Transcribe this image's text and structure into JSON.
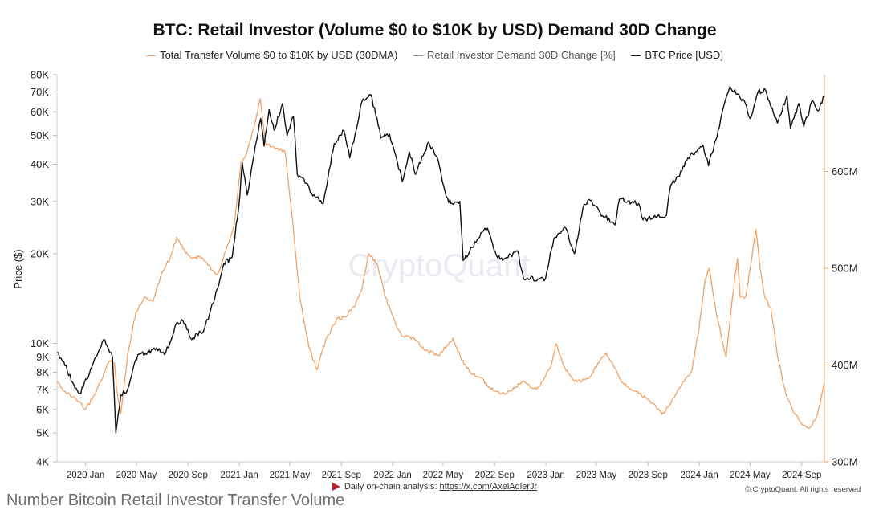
{
  "chart_data": {
    "type": "line",
    "title": "BTC: Retail Investor (Volume $0 to $10K by USD) Demand 30D Change",
    "legend": [
      {
        "label": "Total Transfer Volume $0 to $10K by USD (30DMA)",
        "color": "#f0a266",
        "strike": false
      },
      {
        "label": "Retail Investor Demand 30D Change [%]",
        "color": "#8a8a9a",
        "strike": true
      },
      {
        "label": "BTC Price [USD]",
        "color": "#111111",
        "strike": false
      }
    ],
    "ylabel": "Price ($)",
    "y_left": {
      "scale": "log",
      "range": [
        4000,
        80000
      ],
      "ticks": [
        {
          "value": 4000,
          "label": "4K"
        },
        {
          "value": 5000,
          "label": "5K"
        },
        {
          "value": 6000,
          "label": "6K"
        },
        {
          "value": 7000,
          "label": "7K"
        },
        {
          "value": 8000,
          "label": "8K"
        },
        {
          "value": 9000,
          "label": "9K"
        },
        {
          "value": 10000,
          "label": "10K"
        },
        {
          "value": 20000,
          "label": "20K"
        },
        {
          "value": 30000,
          "label": "30K"
        },
        {
          "value": 40000,
          "label": "40K"
        },
        {
          "value": 50000,
          "label": "50K"
        },
        {
          "value": 60000,
          "label": "60K"
        },
        {
          "value": 70000,
          "label": "70K"
        },
        {
          "value": 80000,
          "label": "80K"
        }
      ]
    },
    "y_right": {
      "scale": "linear",
      "range": [
        300000000,
        700000000
      ],
      "ticks": [
        {
          "value": 300000000,
          "label": "300M"
        },
        {
          "value": 400000000,
          "label": "400M"
        },
        {
          "value": 500000000,
          "label": "500M"
        },
        {
          "value": 600000000,
          "label": "600M"
        }
      ]
    },
    "x_ticks": [
      {
        "date": "2020-01",
        "label": "2020 Jan"
      },
      {
        "date": "2020-05",
        "label": "2020 May"
      },
      {
        "date": "2020-09",
        "label": "2020 Sep"
      },
      {
        "date": "2021-01",
        "label": "2021 Jan"
      },
      {
        "date": "2021-05",
        "label": "2021 May"
      },
      {
        "date": "2021-09",
        "label": "2021 Sep"
      },
      {
        "date": "2022-01",
        "label": "2022 Jan"
      },
      {
        "date": "2022-05",
        "label": "2022 May"
      },
      {
        "date": "2022-09",
        "label": "2022 Sep"
      },
      {
        "date": "2023-01",
        "label": "2023 Jan"
      },
      {
        "date": "2023-05",
        "label": "2023 May"
      },
      {
        "date": "2023-09",
        "label": "2023 Sep"
      },
      {
        "date": "2024-01",
        "label": "2024 Jan"
      },
      {
        "date": "2024-05",
        "label": "2024 May"
      },
      {
        "date": "2024-09",
        "label": "2024 Sep"
      }
    ],
    "x_range": [
      "2019-10-25",
      "2024-10-25"
    ],
    "grid": false,
    "series": [
      {
        "name": "BTC Price [USD]",
        "axis": "left",
        "color": "#111111",
        "points": [
          [
            "2019-10-25",
            9300
          ],
          [
            "2019-11-10",
            8700
          ],
          [
            "2019-12-01",
            7400
          ],
          [
            "2019-12-18",
            6800
          ],
          [
            "2020-01-10",
            7900
          ],
          [
            "2020-02-13",
            10300
          ],
          [
            "2020-03-05",
            9000
          ],
          [
            "2020-03-13",
            5000
          ],
          [
            "2020-03-25",
            6700
          ],
          [
            "2020-04-10",
            7000
          ],
          [
            "2020-04-29",
            8800
          ],
          [
            "2020-05-10",
            9200
          ],
          [
            "2020-06-15",
            9500
          ],
          [
            "2020-07-10",
            9300
          ],
          [
            "2020-08-01",
            11400
          ],
          [
            "2020-08-20",
            11900
          ],
          [
            "2020-09-10",
            10300
          ],
          [
            "2020-10-10",
            11200
          ],
          [
            "2020-10-25",
            13000
          ],
          [
            "2020-11-10",
            15300
          ],
          [
            "2020-11-25",
            18500
          ],
          [
            "2020-12-15",
            19500
          ],
          [
            "2020-12-31",
            29000
          ],
          [
            "2021-01-08",
            40500
          ],
          [
            "2021-01-20",
            31500
          ],
          [
            "2021-02-08",
            46000
          ],
          [
            "2021-02-21",
            57000
          ],
          [
            "2021-03-01",
            46000
          ],
          [
            "2021-03-13",
            61000
          ],
          [
            "2021-03-25",
            52000
          ],
          [
            "2021-04-14",
            64000
          ],
          [
            "2021-04-25",
            50000
          ],
          [
            "2021-05-10",
            58000
          ],
          [
            "2021-05-19",
            37000
          ],
          [
            "2021-06-01",
            36000
          ],
          [
            "2021-06-22",
            32000
          ],
          [
            "2021-07-20",
            29500
          ],
          [
            "2021-08-15",
            47000
          ],
          [
            "2021-09-07",
            52000
          ],
          [
            "2021-09-21",
            42000
          ],
          [
            "2021-10-10",
            55000
          ],
          [
            "2021-10-20",
            65000
          ],
          [
            "2021-11-10",
            68500
          ],
          [
            "2021-11-25",
            57000
          ],
          [
            "2021-12-04",
            49000
          ],
          [
            "2021-12-25",
            50500
          ],
          [
            "2022-01-10",
            42000
          ],
          [
            "2022-01-24",
            35000
          ],
          [
            "2022-02-10",
            44000
          ],
          [
            "2022-02-24",
            37000
          ],
          [
            "2022-03-28",
            47500
          ],
          [
            "2022-04-20",
            41000
          ],
          [
            "2022-05-09",
            31000
          ],
          [
            "2022-05-20",
            29500
          ],
          [
            "2022-06-10",
            30000
          ],
          [
            "2022-06-18",
            19000
          ],
          [
            "2022-07-10",
            21000
          ],
          [
            "2022-07-30",
            23500
          ],
          [
            "2022-08-15",
            24400
          ],
          [
            "2022-09-05",
            19800
          ],
          [
            "2022-09-20",
            19000
          ],
          [
            "2022-10-25",
            20500
          ],
          [
            "2022-11-09",
            16500
          ],
          [
            "2022-12-31",
            16500
          ],
          [
            "2023-01-20",
            22500
          ],
          [
            "2023-02-16",
            24500
          ],
          [
            "2023-03-10",
            20000
          ],
          [
            "2023-03-30",
            28500
          ],
          [
            "2023-04-14",
            30500
          ],
          [
            "2023-05-10",
            27500
          ],
          [
            "2023-06-15",
            25000
          ],
          [
            "2023-06-25",
            30500
          ],
          [
            "2023-07-15",
            30000
          ],
          [
            "2023-08-10",
            29500
          ],
          [
            "2023-08-20",
            26000
          ],
          [
            "2023-09-20",
            26500
          ],
          [
            "2023-10-15",
            27000
          ],
          [
            "2023-10-25",
            34000
          ],
          [
            "2023-11-15",
            36500
          ],
          [
            "2023-12-05",
            42000
          ],
          [
            "2024-01-10",
            46500
          ],
          [
            "2024-01-23",
            39500
          ],
          [
            "2024-02-15",
            52000
          ],
          [
            "2024-03-05",
            67000
          ],
          [
            "2024-03-14",
            73000
          ],
          [
            "2024-04-01",
            69000
          ],
          [
            "2024-04-20",
            64000
          ],
          [
            "2024-05-01",
            57000
          ],
          [
            "2024-05-20",
            70000
          ],
          [
            "2024-06-07",
            71000
          ],
          [
            "2024-07-05",
            55000
          ],
          [
            "2024-07-28",
            68000
          ],
          [
            "2024-08-05",
            53000
          ],
          [
            "2024-08-25",
            64000
          ],
          [
            "2024-09-06",
            53500
          ],
          [
            "2024-09-27",
            65500
          ],
          [
            "2024-10-10",
            60500
          ],
          [
            "2024-10-25",
            67500
          ]
        ]
      },
      {
        "name": "Total Transfer Volume $0 to $10K by USD (30DMA)",
        "axis": "right",
        "color": "#f0a266",
        "points": [
          [
            "2019-10-25",
            383000000
          ],
          [
            "2019-11-15",
            372000000
          ],
          [
            "2019-12-15",
            362000000
          ],
          [
            "2020-01-01",
            354000000
          ],
          [
            "2020-01-20",
            368000000
          ],
          [
            "2020-02-05",
            382000000
          ],
          [
            "2020-02-25",
            403000000
          ],
          [
            "2020-03-10",
            402000000
          ],
          [
            "2020-03-15",
            375000000
          ],
          [
            "2020-03-25",
            350000000
          ],
          [
            "2020-04-10",
            410000000
          ],
          [
            "2020-04-30",
            455000000
          ],
          [
            "2020-05-20",
            470000000
          ],
          [
            "2020-06-10",
            466000000
          ],
          [
            "2020-06-30",
            495000000
          ],
          [
            "2020-07-20",
            510000000
          ],
          [
            "2020-08-05",
            532000000
          ],
          [
            "2020-08-20",
            520000000
          ],
          [
            "2020-09-10",
            510000000
          ],
          [
            "2020-09-30",
            512000000
          ],
          [
            "2020-10-20",
            503000000
          ],
          [
            "2020-11-10",
            493000000
          ],
          [
            "2020-12-01",
            520000000
          ],
          [
            "2020-12-20",
            545000000
          ],
          [
            "2021-01-05",
            610000000
          ],
          [
            "2021-01-20",
            620000000
          ],
          [
            "2021-02-10",
            655000000
          ],
          [
            "2021-02-20",
            675000000
          ],
          [
            "2021-03-05",
            628000000
          ],
          [
            "2021-03-25",
            625000000
          ],
          [
            "2021-04-20",
            620000000
          ],
          [
            "2021-05-10",
            540000000
          ],
          [
            "2021-05-25",
            470000000
          ],
          [
            "2021-06-15",
            420000000
          ],
          [
            "2021-07-05",
            395000000
          ],
          [
            "2021-07-25",
            425000000
          ],
          [
            "2021-08-20",
            447000000
          ],
          [
            "2021-09-10",
            450000000
          ],
          [
            "2021-10-01",
            460000000
          ],
          [
            "2021-10-20",
            478000000
          ],
          [
            "2021-11-05",
            515000000
          ],
          [
            "2021-11-25",
            505000000
          ],
          [
            "2021-12-15",
            470000000
          ],
          [
            "2022-01-10",
            440000000
          ],
          [
            "2022-01-25",
            430000000
          ],
          [
            "2022-02-20",
            428000000
          ],
          [
            "2022-03-20",
            415000000
          ],
          [
            "2022-04-20",
            410000000
          ],
          [
            "2022-05-10",
            420000000
          ],
          [
            "2022-05-25",
            428000000
          ],
          [
            "2022-06-15",
            405000000
          ],
          [
            "2022-07-05",
            392000000
          ],
          [
            "2022-07-30",
            387000000
          ],
          [
            "2022-08-20",
            377000000
          ],
          [
            "2022-09-15",
            370000000
          ],
          [
            "2022-10-10",
            373000000
          ],
          [
            "2022-11-05",
            383000000
          ],
          [
            "2022-11-20",
            380000000
          ],
          [
            "2022-12-10",
            375000000
          ],
          [
            "2022-12-25",
            383000000
          ],
          [
            "2023-01-15",
            402000000
          ],
          [
            "2023-01-25",
            422000000
          ],
          [
            "2023-02-15",
            397000000
          ],
          [
            "2023-03-10",
            383000000
          ],
          [
            "2023-04-05",
            385000000
          ],
          [
            "2023-04-20",
            390000000
          ],
          [
            "2023-05-10",
            405000000
          ],
          [
            "2023-05-25",
            412000000
          ],
          [
            "2023-06-10",
            400000000
          ],
          [
            "2023-06-30",
            382000000
          ],
          [
            "2023-08-01",
            373000000
          ],
          [
            "2023-08-30",
            365000000
          ],
          [
            "2023-09-20",
            357000000
          ],
          [
            "2023-10-05",
            349000000
          ],
          [
            "2023-10-25",
            360000000
          ],
          [
            "2023-11-20",
            380000000
          ],
          [
            "2023-12-15",
            395000000
          ],
          [
            "2024-01-01",
            440000000
          ],
          [
            "2024-01-15",
            488000000
          ],
          [
            "2024-01-25",
            500000000
          ],
          [
            "2024-02-10",
            455000000
          ],
          [
            "2024-02-25",
            425000000
          ],
          [
            "2024-03-05",
            408000000
          ],
          [
            "2024-03-20",
            470000000
          ],
          [
            "2024-04-01",
            510000000
          ],
          [
            "2024-04-08",
            470000000
          ],
          [
            "2024-04-20",
            470000000
          ],
          [
            "2024-05-05",
            510000000
          ],
          [
            "2024-05-15",
            540000000
          ],
          [
            "2024-05-25",
            500000000
          ],
          [
            "2024-06-05",
            470000000
          ],
          [
            "2024-06-20",
            458000000
          ],
          [
            "2024-07-05",
            410000000
          ],
          [
            "2024-07-25",
            370000000
          ],
          [
            "2024-08-15",
            350000000
          ],
          [
            "2024-09-05",
            337000000
          ],
          [
            "2024-09-20",
            335000000
          ],
          [
            "2024-10-05",
            345000000
          ],
          [
            "2024-10-15",
            360000000
          ],
          [
            "2024-10-25",
            382000000
          ]
        ]
      }
    ]
  },
  "footer": {
    "text": "Daily on-chain analysis:",
    "link": "https://x.com/AxelAdlerJr",
    "copyright": "© CryptoQuant. All rights reserved"
  },
  "watermark": "CryptoQuant",
  "cropped_text": "Number Bitcoin Retail Investor Transfer Volume"
}
